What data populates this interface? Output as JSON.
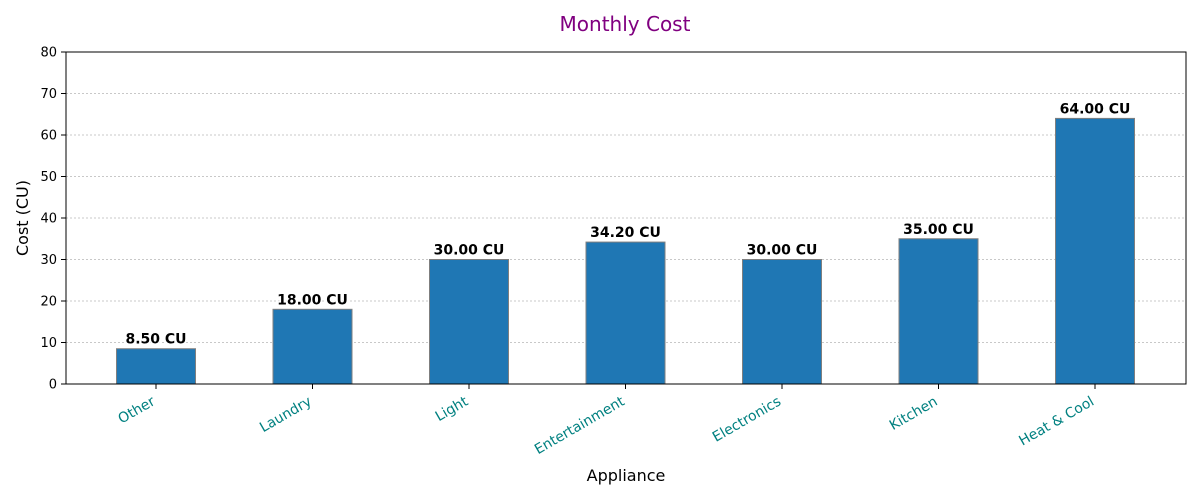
{
  "chart_data": {
    "type": "bar",
    "title": "Monthly Cost",
    "xlabel": "Appliance",
    "ylabel": "Cost (CU)",
    "categories": [
      "Other",
      "Laundry",
      "Light",
      "Entertainment",
      "Electronics",
      "Kitchen",
      "Heat & Cool"
    ],
    "values": [
      8.5,
      18.0,
      30.0,
      34.2,
      30.0,
      35.0,
      64.0
    ],
    "data_labels": [
      "8.50 CU",
      "18.00 CU",
      "30.00 CU",
      "34.20 CU",
      "30.00 CU",
      "35.00 CU",
      "64.00 CU"
    ],
    "ylim": [
      0,
      80
    ],
    "yticks": [
      0,
      10,
      20,
      30,
      40,
      50,
      60,
      70,
      80
    ],
    "grid": "horizontal dotted",
    "colors": {
      "bar": "#1f77b4",
      "bar_edge": "#7f7f7f",
      "title": "#800080",
      "xtick_labels": "#008080",
      "grid": "#c8c8c8"
    }
  }
}
